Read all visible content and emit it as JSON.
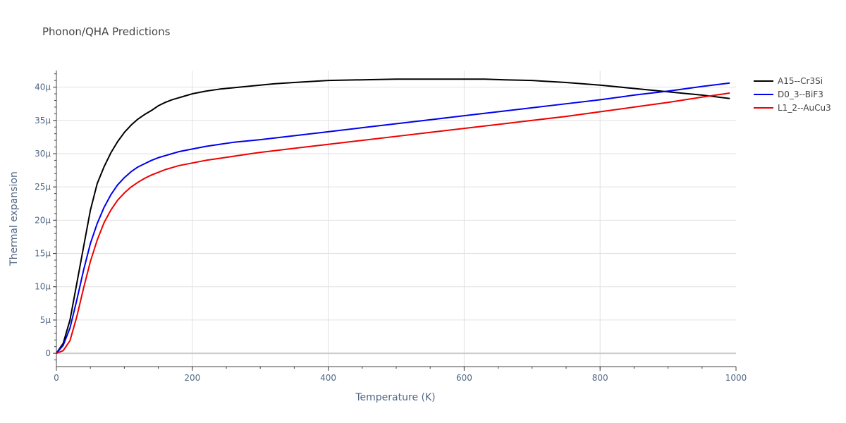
{
  "chart_data": {
    "type": "line",
    "title": "Phonon/QHA Predictions",
    "xlabel": "Temperature (K)",
    "ylabel": "Thermal expansion",
    "xlim": [
      0,
      1000
    ],
    "ylim": [
      -2e-06,
      4.25e-05
    ],
    "x_ticks": [
      0,
      200,
      400,
      600,
      800,
      1000
    ],
    "x_tick_labels": [
      "0",
      "200",
      "400",
      "600",
      "800",
      "1000"
    ],
    "y_ticks": [
      0,
      5e-06,
      1e-05,
      1.5e-05,
      2e-05,
      2.5e-05,
      3e-05,
      3.5e-05,
      4e-05
    ],
    "y_tick_labels": [
      "0",
      "5μ",
      "10μ",
      "15μ",
      "20μ",
      "25μ",
      "30μ",
      "35μ",
      "40μ"
    ],
    "grid": true,
    "legend_position": "top-right",
    "series": [
      {
        "name": "A15--Cr3Si",
        "color": "#000000",
        "x": [
          0,
          10,
          20,
          30,
          40,
          50,
          60,
          70,
          80,
          90,
          100,
          110,
          120,
          130,
          140,
          150,
          160,
          170,
          180,
          190,
          200,
          220,
          240,
          260,
          280,
          300,
          320,
          350,
          400,
          450,
          500,
          550,
          600,
          630,
          660,
          700,
          750,
          800,
          850,
          900,
          950,
          990
        ],
        "y": [
          0,
          1.5e-06,
          5e-06,
          1.05e-05,
          1.6e-05,
          2.15e-05,
          2.55e-05,
          2.8e-05,
          3.01e-05,
          3.18e-05,
          3.32e-05,
          3.43e-05,
          3.52e-05,
          3.59e-05,
          3.65e-05,
          3.72e-05,
          3.77e-05,
          3.81e-05,
          3.84e-05,
          3.87e-05,
          3.9e-05,
          3.94e-05,
          3.97e-05,
          3.99e-05,
          4.01e-05,
          4.03e-05,
          4.05e-05,
          4.07e-05,
          4.1e-05,
          4.11e-05,
          4.12e-05,
          4.12e-05,
          4.12e-05,
          4.12e-05,
          4.11e-05,
          4.1e-05,
          4.07e-05,
          4.03e-05,
          3.98e-05,
          3.93e-05,
          3.88e-05,
          3.83e-05
        ]
      },
      {
        "name": "D0_3--BiF3",
        "color": "#0000ee",
        "x": [
          0,
          10,
          20,
          30,
          40,
          50,
          60,
          70,
          80,
          90,
          100,
          110,
          120,
          130,
          140,
          150,
          160,
          170,
          180,
          190,
          200,
          220,
          240,
          260,
          280,
          300,
          350,
          400,
          450,
          500,
          550,
          600,
          650,
          700,
          750,
          800,
          850,
          900,
          950,
          990
        ],
        "y": [
          0,
          1.2e-06,
          3.8e-06,
          8e-06,
          1.25e-05,
          1.65e-05,
          1.95e-05,
          2.19e-05,
          2.38e-05,
          2.53e-05,
          2.64e-05,
          2.73e-05,
          2.8e-05,
          2.85e-05,
          2.9e-05,
          2.94e-05,
          2.97e-05,
          3e-05,
          3.03e-05,
          3.05e-05,
          3.07e-05,
          3.11e-05,
          3.14e-05,
          3.17e-05,
          3.19e-05,
          3.21e-05,
          3.27e-05,
          3.33e-05,
          3.39e-05,
          3.45e-05,
          3.51e-05,
          3.57e-05,
          3.63e-05,
          3.69e-05,
          3.75e-05,
          3.81e-05,
          3.88e-05,
          3.94e-05,
          4.01e-05,
          4.06e-05
        ]
      },
      {
        "name": "L1_2--AuCu3",
        "color": "#ee0000",
        "x": [
          0,
          10,
          20,
          30,
          40,
          50,
          60,
          70,
          80,
          90,
          100,
          110,
          120,
          130,
          140,
          150,
          160,
          170,
          180,
          190,
          200,
          220,
          240,
          260,
          280,
          300,
          350,
          400,
          450,
          500,
          550,
          600,
          650,
          700,
          750,
          800,
          850,
          900,
          950,
          990
        ],
        "y": [
          0,
          4e-07,
          1.9e-06,
          5.5e-06,
          9.8e-06,
          1.38e-05,
          1.7e-05,
          1.96e-05,
          2.15e-05,
          2.3e-05,
          2.41e-05,
          2.5e-05,
          2.57e-05,
          2.63e-05,
          2.68e-05,
          2.72e-05,
          2.76e-05,
          2.79e-05,
          2.82e-05,
          2.84e-05,
          2.86e-05,
          2.9e-05,
          2.93e-05,
          2.96e-05,
          2.99e-05,
          3.02e-05,
          3.08e-05,
          3.14e-05,
          3.2e-05,
          3.26e-05,
          3.32e-05,
          3.38e-05,
          3.44e-05,
          3.5e-05,
          3.56e-05,
          3.63e-05,
          3.7e-05,
          3.77e-05,
          3.85e-05,
          3.91e-05
        ]
      }
    ]
  }
}
